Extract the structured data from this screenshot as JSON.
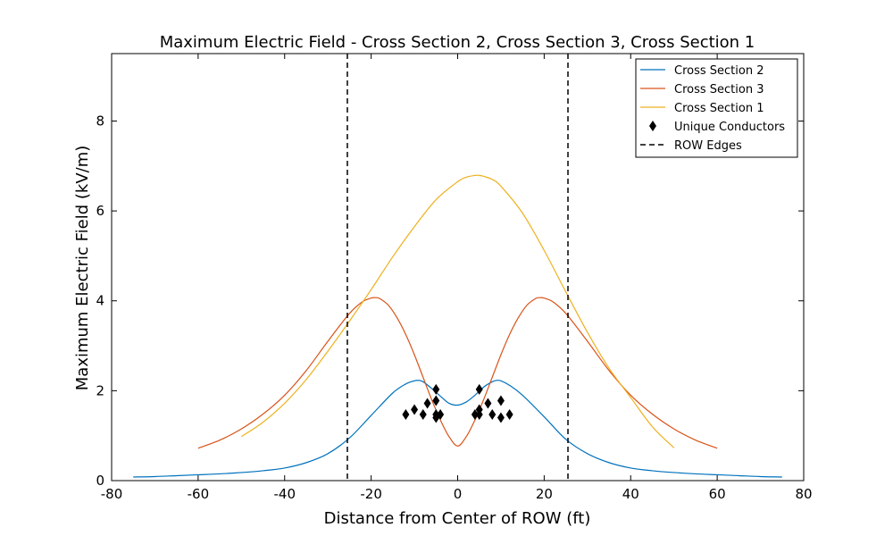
{
  "chart_data": {
    "type": "line",
    "title": "Maximum Electric Field - Cross Section 2, Cross Section 3, Cross Section 1",
    "xlabel": "Distance from Center of ROW (ft)",
    "ylabel": "Maximum Electric Field (kV/m)",
    "xlim": [
      -80,
      80
    ],
    "ylim": [
      0,
      9.5
    ],
    "xticks": [
      -80,
      -60,
      -40,
      -20,
      0,
      20,
      40,
      60,
      80
    ],
    "yticks": [
      0,
      2,
      4,
      6,
      8
    ],
    "grid": false,
    "legend_position": "top-right",
    "series": [
      {
        "name": "Cross Section 2",
        "color": "#0072bd",
        "x": [
          -75,
          -70,
          -65,
          -60,
          -55,
          -50,
          -45,
          -40,
          -35,
          -30,
          -25,
          -20,
          -15,
          -12,
          -10,
          -9,
          -8,
          -6,
          -4,
          -2,
          0,
          2,
          4,
          6,
          8,
          9,
          10,
          12,
          15,
          20,
          25,
          30,
          35,
          40,
          45,
          50,
          55,
          60,
          65,
          70,
          75
        ],
        "y": [
          0.08,
          0.09,
          0.11,
          0.13,
          0.15,
          0.18,
          0.22,
          0.28,
          0.4,
          0.6,
          0.95,
          1.45,
          1.95,
          2.15,
          2.22,
          2.23,
          2.2,
          2.05,
          1.88,
          1.72,
          1.68,
          1.75,
          1.9,
          2.08,
          2.2,
          2.23,
          2.22,
          2.12,
          1.9,
          1.42,
          0.92,
          0.6,
          0.4,
          0.28,
          0.22,
          0.18,
          0.15,
          0.13,
          0.11,
          0.09,
          0.08
        ]
      },
      {
        "name": "Cross Section 3",
        "color": "#d95319",
        "x": [
          -60,
          -55,
          -50,
          -45,
          -40,
          -35,
          -30,
          -25,
          -22,
          -20,
          -19,
          -18,
          -16,
          -14,
          -12,
          -10,
          -8,
          -6,
          -4,
          -2,
          0,
          2,
          4,
          6,
          8,
          10,
          12,
          14,
          16,
          18,
          19,
          20,
          22,
          25,
          30,
          35,
          40,
          45,
          50,
          55,
          60
        ],
        "y": [
          0.72,
          0.9,
          1.15,
          1.48,
          1.9,
          2.45,
          3.1,
          3.72,
          3.98,
          4.06,
          4.07,
          4.05,
          3.9,
          3.62,
          3.25,
          2.8,
          2.3,
          1.8,
          1.35,
          0.98,
          0.77,
          0.98,
          1.35,
          1.8,
          2.3,
          2.8,
          3.25,
          3.62,
          3.9,
          4.05,
          4.07,
          4.06,
          3.98,
          3.72,
          3.1,
          2.45,
          1.9,
          1.48,
          1.15,
          0.9,
          0.72
        ]
      },
      {
        "name": "Cross Section 1",
        "color": "#edb120",
        "x": [
          -50,
          -45,
          -40,
          -35,
          -30,
          -25,
          -20,
          -15,
          -10,
          -5,
          0,
          2,
          4,
          5,
          6,
          8,
          10,
          15,
          20,
          25,
          30,
          35,
          40,
          45,
          50
        ],
        "y": [
          0.98,
          1.3,
          1.72,
          2.25,
          2.88,
          3.55,
          4.25,
          4.98,
          5.65,
          6.25,
          6.65,
          6.75,
          6.79,
          6.79,
          6.77,
          6.7,
          6.55,
          5.95,
          5.12,
          4.2,
          3.3,
          2.5,
          1.85,
          1.2,
          0.73
        ]
      }
    ],
    "markers": {
      "name": "Unique Conductors",
      "color": "#000000",
      "points": [
        {
          "x": -12,
          "y": 1.47
        },
        {
          "x": -10,
          "y": 1.58
        },
        {
          "x": -8,
          "y": 1.47
        },
        {
          "x": -7,
          "y": 1.72
        },
        {
          "x": -5,
          "y": 2.03
        },
        {
          "x": -5,
          "y": 1.78
        },
        {
          "x": -5,
          "y": 1.47
        },
        {
          "x": -5,
          "y": 1.4
        },
        {
          "x": -4,
          "y": 1.47
        },
        {
          "x": 4,
          "y": 1.47
        },
        {
          "x": 5,
          "y": 2.03
        },
        {
          "x": 5,
          "y": 1.58
        },
        {
          "x": 5,
          "y": 1.47
        },
        {
          "x": 7,
          "y": 1.72
        },
        {
          "x": 8,
          "y": 1.47
        },
        {
          "x": 10,
          "y": 1.78
        },
        {
          "x": 10,
          "y": 1.4
        },
        {
          "x": 12,
          "y": 1.47
        }
      ]
    },
    "row_edges": {
      "name": "ROW Edges",
      "color": "#000000",
      "x": [
        -25.5,
        25.5
      ]
    }
  }
}
